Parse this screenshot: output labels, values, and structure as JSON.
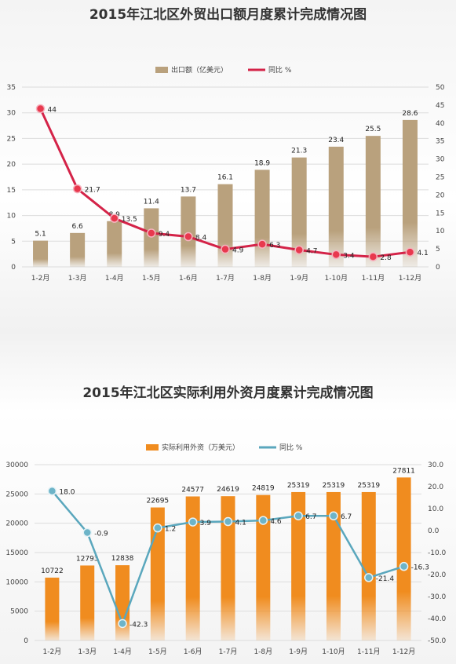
{
  "colors": {
    "export_bar": "#b9a17d",
    "export_line": "#d42348",
    "invest_bar": "#f08c1f",
    "invest_line": "#5aa7bd",
    "grid": "#dcdcdc",
    "axis_text": "#444444"
  },
  "chart_data": [
    {
      "type": "bar",
      "title": "2015年江北区外贸出口额月度累计完成情况图",
      "categories": [
        "1-2月",
        "1-3月",
        "1-4月",
        "1-5月",
        "1-6月",
        "1-7月",
        "1-8月",
        "1-9月",
        "1-10月",
        "1-11月",
        "1-12月"
      ],
      "series": [
        {
          "name": "出口额（亿美元）",
          "type": "bar",
          "axis": "left",
          "values": [
            5.1,
            6.6,
            8.9,
            11.4,
            13.7,
            16.1,
            18.9,
            21.3,
            23.4,
            25.5,
            28.6
          ]
        },
        {
          "name": "同比 %",
          "type": "line",
          "axis": "right",
          "values": [
            44,
            21.7,
            13.5,
            9.4,
            8.4,
            4.9,
            6.3,
            4.7,
            3.4,
            2.8,
            4.1
          ],
          "labels": [
            "44",
            "21.7",
            "13.5",
            "9.4",
            "8.4",
            "4.9",
            "6.3",
            "4.7",
            "3.4",
            "2.8",
            "4.1"
          ]
        }
      ],
      "bar_labels": [
        "5.1",
        "6.6",
        "8.9",
        "11.4",
        "13.7",
        "16.1",
        "18.9",
        "21.3",
        "23.4",
        "25.5",
        "28.6"
      ],
      "ylim_left": [
        0,
        35
      ],
      "ylim_right": [
        0,
        50
      ],
      "yticks_left": [
        "0",
        "5",
        "10",
        "15",
        "20",
        "25",
        "30",
        "35"
      ],
      "yticks_right": [
        "0",
        "5",
        "10",
        "15",
        "20",
        "25",
        "30",
        "35",
        "40",
        "45",
        "50"
      ],
      "legend_position": "top-center",
      "grid": true
    },
    {
      "type": "bar",
      "title": "2015年江北区实际利用外资月度累计完成情况图",
      "categories": [
        "1-2月",
        "1-3月",
        "1-4月",
        "1-5月",
        "1-6月",
        "1-7月",
        "1-8月",
        "1-9月",
        "1-10月",
        "1-11月",
        "1-12月"
      ],
      "series": [
        {
          "name": "实际利用外资（万美元）",
          "type": "bar",
          "axis": "left",
          "values": [
            10722,
            12793,
            12838,
            22695,
            24577,
            24619,
            24819,
            25319,
            25319,
            25319,
            27811
          ]
        },
        {
          "name": "同比 %",
          "type": "line",
          "axis": "right",
          "values": [
            18.0,
            -0.9,
            -42.3,
            1.2,
            3.9,
            4.1,
            4.6,
            6.7,
            6.7,
            -21.4,
            -16.3
          ],
          "labels": [
            "18.0",
            "-0.9",
            "-42.3",
            "1.2",
            "3.9",
            "4.1",
            "4.6",
            "6.7",
            "6.7",
            "-21.4",
            "-16.3"
          ]
        }
      ],
      "bar_labels": [
        "10722",
        "12793",
        "12838",
        "22695",
        "24577",
        "24619",
        "24819",
        "25319",
        "25319",
        "25319",
        "27811"
      ],
      "ylim_left": [
        0,
        30000
      ],
      "ylim_right": [
        -50,
        30
      ],
      "yticks_left": [
        "0",
        "5000",
        "10000",
        "15000",
        "20000",
        "25000",
        "30000"
      ],
      "yticks_right": [
        "-50.0",
        "-40.0",
        "-30.0",
        "-20.0",
        "-10.0",
        "0.0",
        "10.0",
        "20.0",
        "30.0"
      ],
      "legend_position": "top-center",
      "grid": true
    }
  ]
}
